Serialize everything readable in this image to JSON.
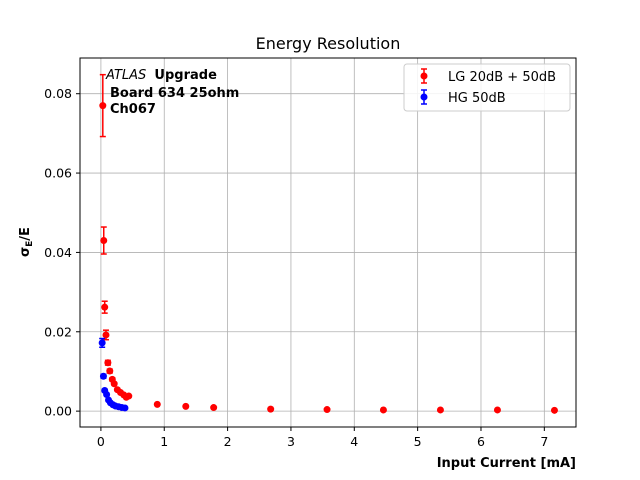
{
  "chart_data": {
    "type": "scatter",
    "title": "Energy Resolution",
    "xlabel": "Input Current [mA]",
    "ylabel": "σE/E",
    "ylabel_main": "σ",
    "ylabel_sub": "E",
    "ylabel_tail": "/E",
    "xlim": [
      -0.33,
      7.5
    ],
    "ylim": [
      -0.004,
      0.089
    ],
    "xticks": [
      0,
      1,
      2,
      3,
      4,
      5,
      6,
      7
    ],
    "xtick_labels": [
      "0",
      "1",
      "2",
      "3",
      "4",
      "5",
      "6",
      "7"
    ],
    "yticks": [
      0.0,
      0.02,
      0.04,
      0.06,
      0.08
    ],
    "ytick_labels": [
      "0.00",
      "0.02",
      "0.04",
      "0.06",
      "0.08"
    ],
    "grid": true,
    "legend_position": "top-right",
    "annotation": {
      "italic": "ATLAS",
      "bold": "Upgrade",
      "line2": "Board 634 25ohm",
      "line3": "Ch067"
    },
    "series": [
      {
        "name": "LG 20dB + 50dB",
        "color": "#ff0000",
        "points": [
          {
            "x": 0.03,
            "y": 0.077,
            "err": 0.0078
          },
          {
            "x": 0.045,
            "y": 0.043,
            "err": 0.0034
          },
          {
            "x": 0.06,
            "y": 0.0262,
            "err": 0.0015
          },
          {
            "x": 0.08,
            "y": 0.0192,
            "err": 0.0012
          },
          {
            "x": 0.11,
            "y": 0.0122,
            "err": 0.0006
          },
          {
            "x": 0.14,
            "y": 0.0101,
            "err": 0.0005
          },
          {
            "x": 0.18,
            "y": 0.008,
            "err": 0.0004
          },
          {
            "x": 0.21,
            "y": 0.0069,
            "err": 0.0003
          },
          {
            "x": 0.26,
            "y": 0.0054,
            "err": 0.0003
          },
          {
            "x": 0.31,
            "y": 0.0047,
            "err": 0.0002
          },
          {
            "x": 0.36,
            "y": 0.0041,
            "err": 0.0002
          },
          {
            "x": 0.4,
            "y": 0.0035,
            "err": 0.0002
          },
          {
            "x": 0.44,
            "y": 0.0038,
            "err": 0.0002
          },
          {
            "x": 0.89,
            "y": 0.0017,
            "err": 0.0001
          },
          {
            "x": 1.34,
            "y": 0.0012,
            "err": 0.0001
          },
          {
            "x": 1.78,
            "y": 0.0009,
            "err": 0.0001
          },
          {
            "x": 2.68,
            "y": 0.0005,
            "err": 0.0001
          },
          {
            "x": 3.57,
            "y": 0.0004,
            "err": 0.0001
          },
          {
            "x": 4.46,
            "y": 0.0003,
            "err": 0.0001
          },
          {
            "x": 5.36,
            "y": 0.0003,
            "err": 0.0001
          },
          {
            "x": 6.26,
            "y": 0.0003,
            "err": 0.0001
          },
          {
            "x": 7.16,
            "y": 0.0002,
            "err": 0.0001
          }
        ]
      },
      {
        "name": "HG 50dB",
        "color": "#0000ff",
        "points": [
          {
            "x": 0.02,
            "y": 0.0172,
            "err": 0.0011
          },
          {
            "x": 0.04,
            "y": 0.0088,
            "err": 0.0005
          },
          {
            "x": 0.06,
            "y": 0.0052,
            "err": 0.0003
          },
          {
            "x": 0.09,
            "y": 0.0042,
            "err": 0.0002
          },
          {
            "x": 0.12,
            "y": 0.0028,
            "err": 0.0002
          },
          {
            "x": 0.15,
            "y": 0.0021,
            "err": 0.0001
          },
          {
            "x": 0.19,
            "y": 0.0016,
            "err": 0.0001
          },
          {
            "x": 0.23,
            "y": 0.0013,
            "err": 0.0001
          },
          {
            "x": 0.28,
            "y": 0.0011,
            "err": 0.0001
          },
          {
            "x": 0.33,
            "y": 0.0009,
            "err": 0.0001
          },
          {
            "x": 0.38,
            "y": 0.0008,
            "err": 0.0001
          }
        ]
      }
    ]
  }
}
